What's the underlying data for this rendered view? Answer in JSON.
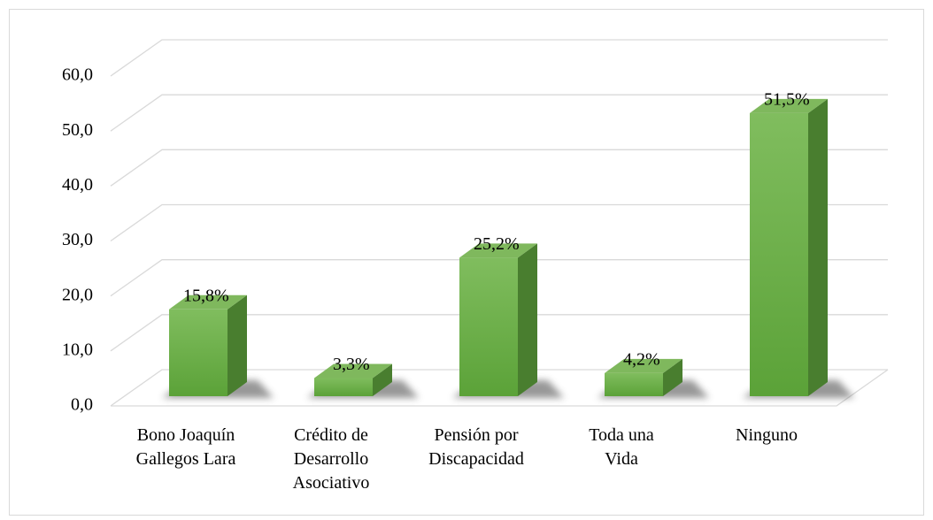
{
  "chart_data": {
    "type": "bar3d",
    "categories": [
      "Bono Joaquín\nGallegos Lara",
      "Crédito de\nDesarrollo\nAsociativo",
      "Pensión por\nDiscapacidad",
      "Toda una\nVida",
      "Ninguno"
    ],
    "values": [
      15.8,
      3.3,
      25.2,
      4.2,
      51.5
    ],
    "value_labels": [
      "15,8%",
      "3,3%",
      "25,2%",
      "4,2%",
      "51,5%"
    ],
    "color": "#6aad45",
    "ylim": [
      0,
      60
    ],
    "yticks": [
      {
        "value": 0,
        "label": "0,0"
      },
      {
        "value": 10,
        "label": "10,0"
      },
      {
        "value": 20,
        "label": "20,0"
      },
      {
        "value": 30,
        "label": "30,0"
      },
      {
        "value": 40,
        "label": "40,0"
      },
      {
        "value": 50,
        "label": "50,0"
      },
      {
        "value": 60,
        "label": "60,0"
      }
    ],
    "grid": true
  }
}
